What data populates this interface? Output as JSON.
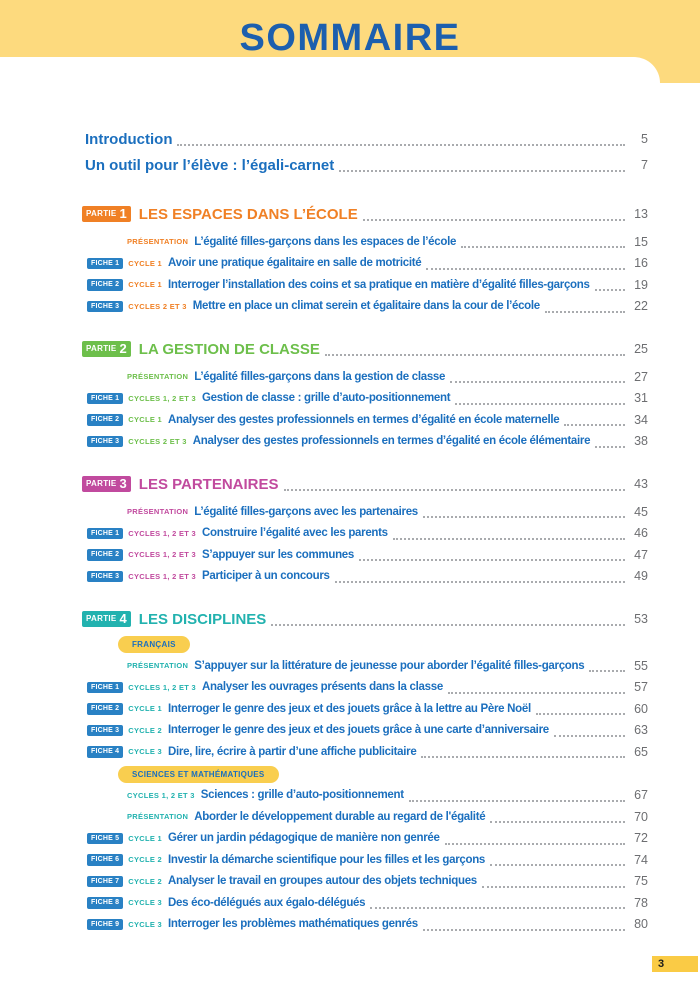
{
  "header": {
    "title": "SOMMAIRE"
  },
  "footer": {
    "page_number": "3"
  },
  "colors": {
    "header_yellow": "#FDDA7E",
    "pill_yellow": "#F9CE4F",
    "tab_yellow": "#FACB45",
    "link_blue": "#1B6FBE",
    "title_blue": "#1C5FAE",
    "fiche_badge_blue": "#2981C4",
    "page_number_gray": "#6D6E71",
    "part1_orange": "#F08025",
    "part2_green": "#6DBF4B",
    "part3_magenta": "#C14A9E",
    "part4_teal": "#22B2AF"
  },
  "intro_items": [
    {
      "label": "Introduction",
      "page": "5"
    },
    {
      "label": "Un outil pour l’élève : l’égali-carnet",
      "page": "7"
    }
  ],
  "parts": [
    {
      "badge": "PARTIE",
      "number": "1",
      "title": "LES ESPACES DANS L’ÉCOLE",
      "page": "13",
      "color": "#F08025",
      "items": [
        {
          "type": "presentation",
          "tag": "PRÉSENTATION",
          "title": "L’égalité filles-garçons dans les espaces de l’école",
          "page": "15"
        },
        {
          "type": "fiche",
          "badge": "FICHE 1",
          "tag": "CYCLE 1",
          "title": "Avoir une pratique égalitaire en salle de motricité",
          "page": "16"
        },
        {
          "type": "fiche",
          "badge": "FICHE 2",
          "tag": "CYCLE 1",
          "title": "Interroger l’installation des coins et sa pratique en matière d’égalité filles-garçons",
          "page": "19"
        },
        {
          "type": "fiche",
          "badge": "FICHE 3",
          "tag": "CYCLES 2 ET 3",
          "title": "Mettre en place un climat serein et égalitaire dans la cour de l’école",
          "page": "22"
        }
      ]
    },
    {
      "badge": "PARTIE",
      "number": "2",
      "title": "LA GESTION DE CLASSE",
      "page": "25",
      "color": "#6DBF4B",
      "items": [
        {
          "type": "presentation",
          "tag": "PRÉSENTATION",
          "title": "L’égalité filles-garçons dans la gestion de classe",
          "page": "27"
        },
        {
          "type": "fiche",
          "badge": "FICHE 1",
          "tag": "CYCLES 1, 2 ET 3",
          "title": "Gestion de classe : grille d’auto-positionnement",
          "page": "31"
        },
        {
          "type": "fiche",
          "badge": "FICHE 2",
          "tag": "CYCLE 1",
          "title": "Analyser des gestes professionnels en termes d’égalité en école maternelle",
          "page": "34"
        },
        {
          "type": "fiche",
          "badge": "FICHE 3",
          "tag": "CYCLES 2 ET 3",
          "title": "Analyser des gestes professionnels en termes d’égalité en école élémentaire",
          "page": "38"
        }
      ]
    },
    {
      "badge": "PARTIE",
      "number": "3",
      "title": "LES PARTENAIRES",
      "page": "43",
      "color": "#C14A9E",
      "items": [
        {
          "type": "presentation",
          "tag": "PRÉSENTATION",
          "title": "L’égalité filles-garçons avec les partenaires",
          "page": "45"
        },
        {
          "type": "fiche",
          "badge": "FICHE 1",
          "tag": "CYCLES 1, 2 ET 3",
          "title": "Construire l’égalité avec les parents",
          "page": "46"
        },
        {
          "type": "fiche",
          "badge": "FICHE 2",
          "tag": "CYCLES 1, 2 ET 3",
          "title": "S’appuyer sur les communes",
          "page": "47"
        },
        {
          "type": "fiche",
          "badge": "FICHE 3",
          "tag": "CYCLES 1, 2 ET 3",
          "title": "Participer à un concours",
          "page": "49"
        }
      ]
    },
    {
      "badge": "PARTIE",
      "number": "4",
      "title": "LES DISCIPLINES",
      "page": "53",
      "color": "#22B2AF",
      "items": [
        {
          "type": "pill",
          "label": "FRANÇAIS"
        },
        {
          "type": "presentation",
          "tag": "PRÉSENTATION",
          "title": "S’appuyer sur la littérature de jeunesse pour aborder l’égalité filles-garçons",
          "page": "55"
        },
        {
          "type": "fiche",
          "badge": "FICHE 1",
          "tag": "CYCLES 1, 2 ET 3",
          "title": "Analyser les ouvrages présents dans la classe",
          "page": "57"
        },
        {
          "type": "fiche",
          "badge": "FICHE 2",
          "tag": "CYCLE 1",
          "title": "Interroger le genre des jeux et des jouets grâce à la lettre au Père Noël",
          "page": "60"
        },
        {
          "type": "fiche",
          "badge": "FICHE 3",
          "tag": "CYCLE 2",
          "title": "Interroger le genre des jeux et des jouets grâce à une carte d’anniversaire",
          "page": "63"
        },
        {
          "type": "fiche",
          "badge": "FICHE 4",
          "tag": "CYCLE 3",
          "title": "Dire, lire, écrire à partir d’une affiche publicitaire",
          "page": "65"
        },
        {
          "type": "pill",
          "label": "SCIENCES ET MATHÉMATIQUES"
        },
        {
          "type": "cycles",
          "tag": "CYCLES 1, 2 ET 3",
          "title": "Sciences : grille d’auto-positionnement",
          "page": "67"
        },
        {
          "type": "presentation",
          "tag": "PRÉSENTATION",
          "title": "Aborder le développement durable au regard de l'égalité",
          "page": "70"
        },
        {
          "type": "fiche",
          "badge": "FICHE 5",
          "tag": "CYCLE 1",
          "title": "Gérer un jardin pédagogique de manière non genrée",
          "page": "72"
        },
        {
          "type": "fiche",
          "badge": "FICHE 6",
          "tag": "CYCLE 2",
          "title": "Investir la démarche scientifique pour les filles et les garçons",
          "page": "74"
        },
        {
          "type": "fiche",
          "badge": "FICHE 7",
          "tag": "CYCLE 2",
          "title": "Analyser le travail en groupes autour des objets techniques",
          "page": "75"
        },
        {
          "type": "fiche",
          "badge": "FICHE 8",
          "tag": "CYCLE 3",
          "title": "Des éco-délégués aux égalo-délégués",
          "page": "78"
        },
        {
          "type": "fiche",
          "badge": "FICHE 9",
          "tag": "CYCLE 3",
          "title": "Interroger les problèmes mathématiques genrés",
          "page": "80"
        }
      ]
    }
  ]
}
